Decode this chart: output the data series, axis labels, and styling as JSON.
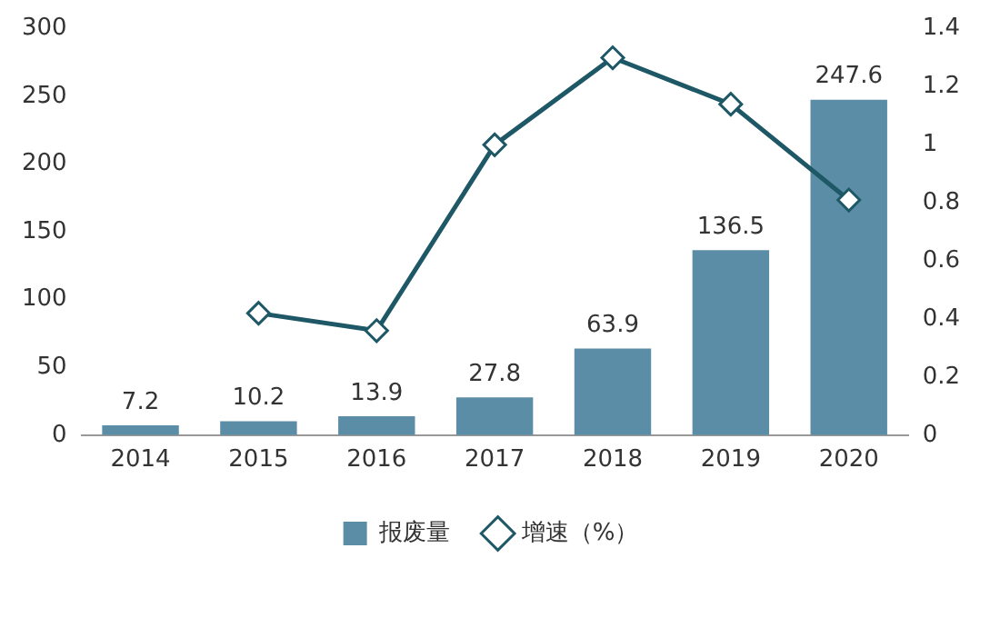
{
  "chart_data": {
    "type": "bar",
    "categories": [
      "2014",
      "2015",
      "2016",
      "2017",
      "2018",
      "2019",
      "2020"
    ],
    "series": [
      {
        "name": "报废量",
        "color": "#5b8ea6",
        "values": [
          7.2,
          10.2,
          13.9,
          27.8,
          63.9,
          136.5,
          247.6
        ],
        "value_labels": [
          "7.2",
          "10.2",
          "13.9",
          "27.8",
          "63.9",
          "136.5",
          "247.6"
        ]
      },
      {
        "name": "增速（%）",
        "type": "line",
        "axis": "y2",
        "color": "#1e5866",
        "values": [
          null,
          0.42,
          0.36,
          1.0,
          1.3,
          1.14,
          0.81
        ]
      }
    ],
    "ylim": [
      0,
      300
    ],
    "yticks": [
      0,
      50,
      100,
      150,
      200,
      250,
      300
    ],
    "y2lim": [
      0,
      1.4
    ],
    "y2ticks": [
      0,
      0.2,
      0.4,
      0.6,
      0.8,
      1,
      1.2,
      1.4
    ],
    "grid": false,
    "legend": "bottom",
    "marker": "diamond",
    "line_style": "solid"
  }
}
